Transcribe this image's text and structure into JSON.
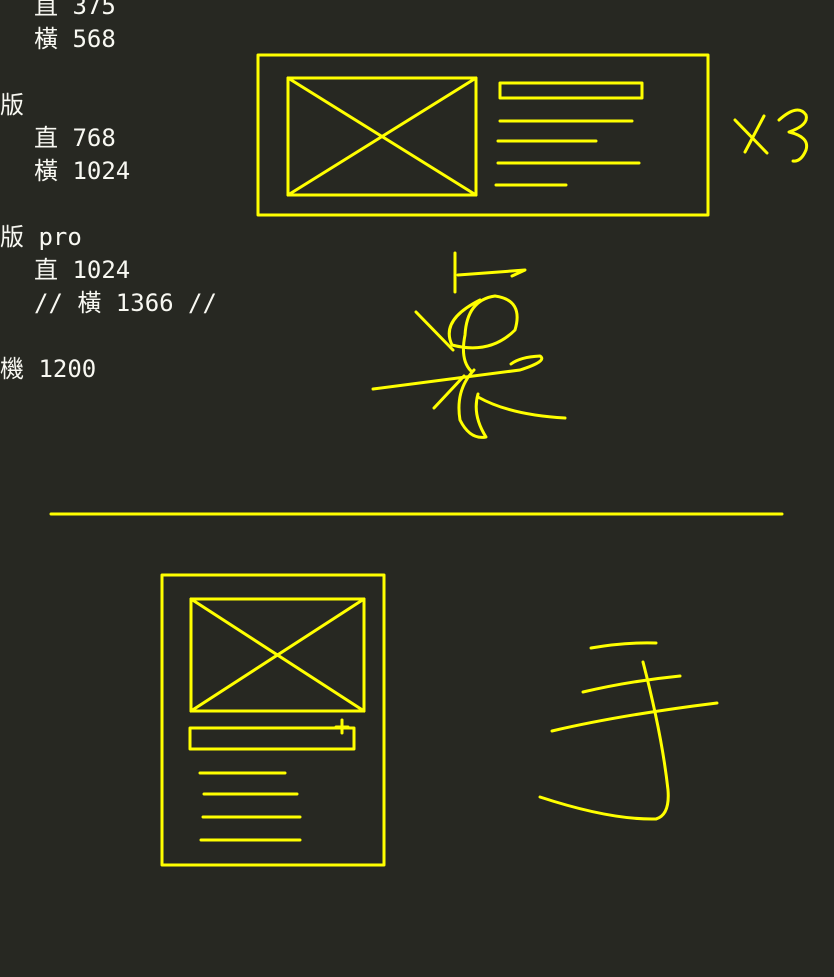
{
  "editor": {
    "lines": [
      {
        "indent": 1,
        "text": "直 375"
      },
      {
        "indent": 1,
        "text": "橫 568"
      },
      {
        "indent": 0,
        "text": ""
      },
      {
        "indent": 0,
        "text": "版"
      },
      {
        "indent": 1,
        "text": "直 768"
      },
      {
        "indent": 1,
        "text": "橫 1024"
      },
      {
        "indent": 0,
        "text": ""
      },
      {
        "indent": 0,
        "text": "版 pro"
      },
      {
        "indent": 1,
        "text": "直 1024"
      },
      {
        "indent": 1,
        "text": "// 橫 1366 //"
      },
      {
        "indent": 0,
        "text": ""
      },
      {
        "indent": 0,
        "text": "機 1200"
      }
    ]
  },
  "annotations": {
    "desktop_repeat_note": "x3",
    "desktop_label_handwritten": "桌",
    "mobile_label_handwritten": "手"
  },
  "colors": {
    "background": "#272822",
    "text": "#f8f8f2",
    "sketch": "#ffff00"
  }
}
